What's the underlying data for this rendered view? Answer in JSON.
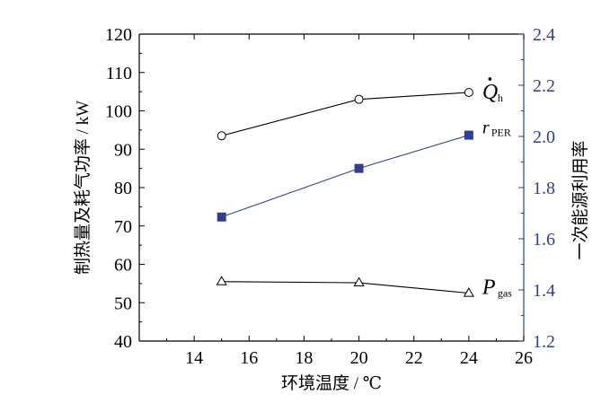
{
  "chart_data": {
    "type": "line",
    "x": [
      15,
      20,
      24
    ],
    "xlabel": "环境温度 / ℃",
    "xlim": [
      12,
      26
    ],
    "xticks": [
      14,
      16,
      18,
      20,
      22,
      24,
      26
    ],
    "ylabel": "制热量及耗气功率 / kW",
    "ylim": [
      40,
      120
    ],
    "yticks": [
      40,
      50,
      60,
      70,
      80,
      90,
      100,
      110,
      120
    ],
    "y2label": "一次能源利用率",
    "y2lim": [
      1.2,
      2.4
    ],
    "y2ticks": [
      "1.2",
      "1.4",
      "1.6",
      "1.8",
      "2.0",
      "2.2",
      "2.4"
    ],
    "grid": false,
    "series": [
      {
        "key": "Qh",
        "name_main": "Q",
        "name_sub": "h",
        "axis": "left",
        "marker": "circle-open",
        "color": "#000000",
        "values": [
          93.5,
          103,
          104.8
        ]
      },
      {
        "key": "rPER",
        "name_main": "r",
        "name_sub": "PER",
        "axis": "right",
        "marker": "square-filled",
        "color": "#2e3f8f",
        "values": [
          1.685,
          1.875,
          2.005
        ]
      },
      {
        "key": "Pgas",
        "name_main": "P",
        "name_sub": "gas",
        "axis": "left",
        "marker": "triangle-open",
        "color": "#000000",
        "values": [
          55.5,
          55.2,
          52.5
        ]
      }
    ]
  }
}
